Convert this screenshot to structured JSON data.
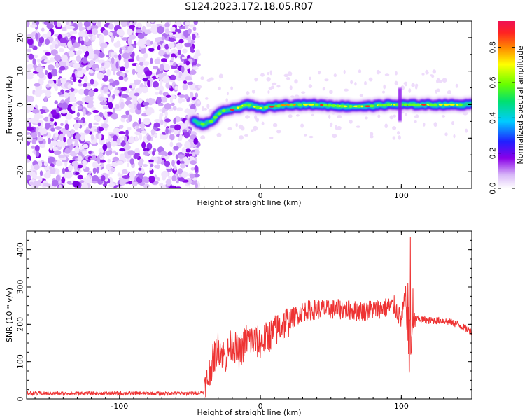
{
  "title": "S124.2023.172.18.05.R07",
  "chart_data": [
    {
      "type": "heatmap",
      "xlabel": "Height of straight line (km)",
      "ylabel": "Frequency (Hz)",
      "xlim": [
        -166,
        150
      ],
      "ylim": [
        -25,
        25
      ],
      "x_ticks": [
        -100,
        0,
        100
      ],
      "y_ticks": [
        -20,
        -10,
        0,
        10,
        20
      ],
      "colorbar": {
        "label": "Normalized spectral amplitude",
        "range": [
          0,
          0.95
        ],
        "ticks": [
          "0.0",
          "0.2",
          "0.4",
          "0.6",
          "0.8"
        ]
      },
      "noise_region_x": [
        -166,
        -47
      ],
      "signal_track": [
        {
          "x": -47,
          "y": -5
        },
        {
          "x": -40,
          "y": -6
        },
        {
          "x": -35,
          "y": -5
        },
        {
          "x": -30,
          "y": -3
        },
        {
          "x": -25,
          "y": -1.5
        },
        {
          "x": -20,
          "y": -1.5
        },
        {
          "x": -10,
          "y": 0
        },
        {
          "x": 0,
          "y": -1
        },
        {
          "x": 10,
          "y": -0.5
        },
        {
          "x": 20,
          "y": 0
        },
        {
          "x": 40,
          "y": 0
        },
        {
          "x": 60,
          "y": -0.5
        },
        {
          "x": 75,
          "y": -0.5
        },
        {
          "x": 90,
          "y": 0
        },
        {
          "x": 100,
          "y": 0
        },
        {
          "x": 150,
          "y": 0
        }
      ]
    },
    {
      "type": "line",
      "xlabel": "Height of straight line (km)",
      "ylabel": "SNR (10 * v/v)",
      "xlim": [
        -166,
        150
      ],
      "ylim": [
        0,
        450
      ],
      "x_ticks": [
        -100,
        0,
        100
      ],
      "y_ticks": [
        0,
        100,
        200,
        300,
        400
      ],
      "series_color": "#ee3333",
      "series": [
        {
          "x": [
            -166,
            -140,
            -110,
            -80,
            -50,
            -40,
            -34,
            -30,
            -25,
            -20,
            -15,
            -10,
            0,
            10,
            20,
            30,
            40,
            50,
            60,
            70,
            80,
            90,
            95,
            100,
            103,
            106,
            108,
            110,
            120,
            130,
            140,
            150
          ],
          "y": [
            15,
            15,
            15,
            15,
            15,
            18,
            100,
            140,
            110,
            150,
            120,
            160,
            150,
            180,
            210,
            235,
            240,
            240,
            240,
            235,
            240,
            245,
            250,
            210,
            280,
            60,
            200,
            215,
            210,
            210,
            200,
            180
          ]
        }
      ]
    }
  ]
}
